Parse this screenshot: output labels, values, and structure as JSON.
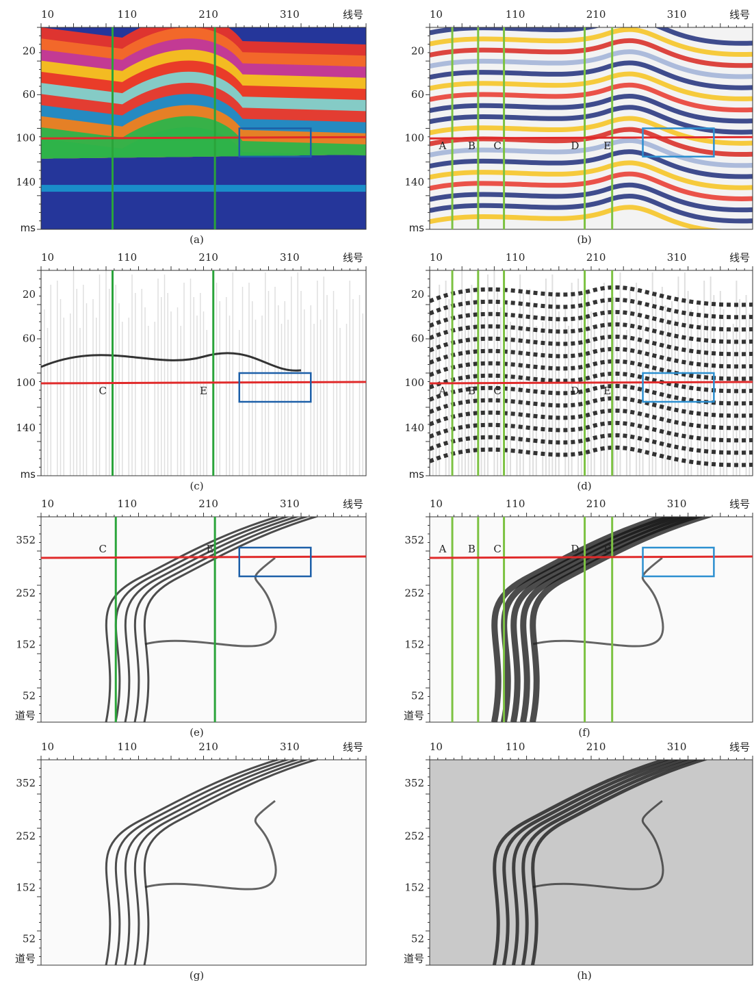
{
  "panels": [
    {
      "label": "(a)",
      "x_ticks": [
        10,
        110,
        210,
        310
      ],
      "x_unit": "线号",
      "y_ticks": [
        20,
        60,
        100,
        140
      ],
      "y_unit": "ms",
      "markers": []
    },
    {
      "label": "(b)",
      "x_ticks": [
        10,
        110,
        210,
        310
      ],
      "x_unit": "线号",
      "y_ticks": [
        20,
        60,
        100,
        140
      ],
      "y_unit": "ms",
      "markers": [
        "A",
        "B",
        "C",
        "D",
        "E"
      ]
    },
    {
      "label": "(c)",
      "x_ticks": [
        10,
        110,
        210,
        310
      ],
      "x_unit": "线号",
      "y_ticks": [
        20,
        60,
        100,
        140
      ],
      "y_unit": "ms",
      "markers": [
        "C",
        "E"
      ]
    },
    {
      "label": "(d)",
      "x_ticks": [
        10,
        110,
        210,
        310
      ],
      "x_unit": "线号",
      "y_ticks": [
        20,
        60,
        100,
        140
      ],
      "y_unit": "ms",
      "markers": [
        "A",
        "B",
        "C",
        "D",
        "E"
      ]
    },
    {
      "label": "(e)",
      "x_ticks": [
        10,
        110,
        210,
        310
      ],
      "x_unit": "线号",
      "y_ticks": [
        352,
        252,
        152,
        52
      ],
      "y_unit": "道号",
      "markers": [
        "C",
        "E"
      ]
    },
    {
      "label": "(f)",
      "x_ticks": [
        10,
        110,
        210,
        310
      ],
      "x_unit": "线号",
      "y_ticks": [
        352,
        252,
        152,
        52
      ],
      "y_unit": "道号",
      "markers": [
        "A",
        "B",
        "C",
        "D",
        "E"
      ]
    },
    {
      "label": "(g)",
      "x_ticks": [
        10,
        110,
        210,
        310
      ],
      "x_unit": "线号",
      "y_ticks": [
        352,
        252,
        152,
        52
      ],
      "y_unit": "道号",
      "markers": []
    },
    {
      "label": "(h)",
      "x_ticks": [
        10,
        110,
        210,
        310
      ],
      "x_unit": "线号",
      "y_ticks": [
        352,
        252,
        152,
        52
      ],
      "y_unit": "道号",
      "markers": []
    }
  ]
}
